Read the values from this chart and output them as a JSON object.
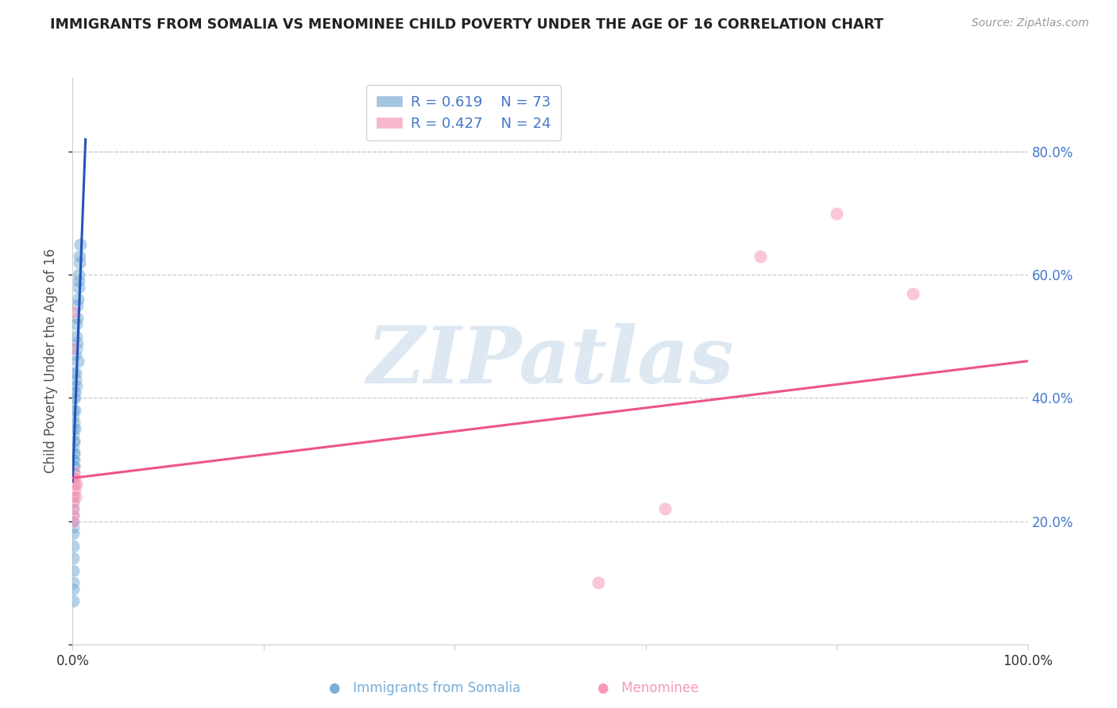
{
  "title": "IMMIGRANTS FROM SOMALIA VS MENOMINEE CHILD POVERTY UNDER THE AGE OF 16 CORRELATION CHART",
  "source": "Source: ZipAtlas.com",
  "ylabel": "Child Poverty Under the Age of 16",
  "right_yticks": [
    "80.0%",
    "60.0%",
    "40.0%",
    "20.0%"
  ],
  "right_ytick_vals": [
    0.8,
    0.6,
    0.4,
    0.2
  ],
  "legend_blue_r": "R = 0.619",
  "legend_blue_n": "N = 73",
  "legend_pink_r": "R = 0.427",
  "legend_pink_n": "N = 24",
  "blue_color": "#7aaed6",
  "pink_color": "#f799b8",
  "blue_line_color": "#2255bb",
  "pink_line_color": "#ee5588",
  "background_color": "#FFFFFF",
  "title_color": "#222222",
  "right_tick_color": "#4477CC",
  "grid_color": "#cccccc",
  "watermark_text": "ZIPatlas",
  "watermark_color": "#dde8f3",
  "blue_scatter_x": [
    0.0008,
    0.0012,
    0.0006,
    0.0015,
    0.001,
    0.0007,
    0.0009,
    0.0011,
    0.0005,
    0.0008,
    0.001,
    0.0006,
    0.0007,
    0.0009,
    0.0005,
    0.0008,
    0.001,
    0.0007,
    0.0006,
    0.0009,
    0.0011,
    0.0008,
    0.0007,
    0.0006,
    0.001,
    0.0009,
    0.0008,
    0.0007,
    0.0006,
    0.0008,
    0.0007,
    0.0006,
    0.0008,
    0.0005,
    0.0007,
    0.0009,
    0.0006,
    0.0008,
    0.0007,
    0.0006,
    0.0009,
    0.0008,
    0.0007,
    0.0006,
    0.0008,
    0.001,
    0.0007,
    0.0006,
    0.0009,
    0.0008,
    0.0025,
    0.003,
    0.0035,
    0.0042,
    0.005,
    0.006,
    0.007,
    0.008,
    0.0055,
    0.0045,
    0.0038,
    0.0065,
    0.002,
    0.0015,
    0.0018,
    0.0022,
    0.0028,
    0.0032,
    0.004,
    0.0048,
    0.0055,
    0.006,
    0.007
  ],
  "blue_scatter_y": [
    0.27,
    0.29,
    0.26,
    0.31,
    0.28,
    0.27,
    0.29,
    0.3,
    0.25,
    0.28,
    0.33,
    0.35,
    0.37,
    0.4,
    0.42,
    0.44,
    0.3,
    0.32,
    0.28,
    0.34,
    0.36,
    0.38,
    0.24,
    0.26,
    0.31,
    0.29,
    0.27,
    0.25,
    0.28,
    0.3,
    0.23,
    0.21,
    0.19,
    0.22,
    0.26,
    0.24,
    0.2,
    0.18,
    0.16,
    0.14,
    0.12,
    0.1,
    0.09,
    0.07,
    0.27,
    0.29,
    0.25,
    0.23,
    0.28,
    0.26,
    0.4,
    0.43,
    0.48,
    0.52,
    0.55,
    0.58,
    0.62,
    0.65,
    0.46,
    0.49,
    0.42,
    0.6,
    0.35,
    0.33,
    0.38,
    0.41,
    0.44,
    0.47,
    0.5,
    0.53,
    0.56,
    0.59,
    0.63
  ],
  "pink_scatter_x": [
    0.0005,
    0.0008,
    0.001,
    0.0006,
    0.0009,
    0.0007,
    0.0008,
    0.0005,
    0.001,
    0.0007,
    0.0006,
    0.0009,
    0.0008,
    0.0007,
    0.0018,
    0.002,
    0.0025,
    0.003,
    0.0035,
    0.55,
    0.62,
    0.72,
    0.8,
    0.88
  ],
  "pink_scatter_y": [
    0.27,
    0.26,
    0.28,
    0.54,
    0.48,
    0.27,
    0.26,
    0.25,
    0.27,
    0.24,
    0.23,
    0.22,
    0.21,
    0.2,
    0.27,
    0.26,
    0.25,
    0.24,
    0.26,
    0.1,
    0.22,
    0.63,
    0.7,
    0.57
  ],
  "blue_trendline_x": [
    0.0,
    0.0135
  ],
  "blue_trendline_y": [
    0.265,
    0.82
  ],
  "pink_trendline_x": [
    0.0,
    1.0
  ],
  "pink_trendline_y": [
    0.27,
    0.46
  ],
  "xlim": [
    0.0,
    1.0
  ],
  "ylim": [
    0.0,
    0.92
  ],
  "xtick_positions": [
    0.0,
    0.2,
    0.4,
    0.6,
    0.8,
    1.0
  ],
  "xtick_labels": [
    "0.0%",
    "",
    "",
    "",
    "",
    "100.0%"
  ]
}
